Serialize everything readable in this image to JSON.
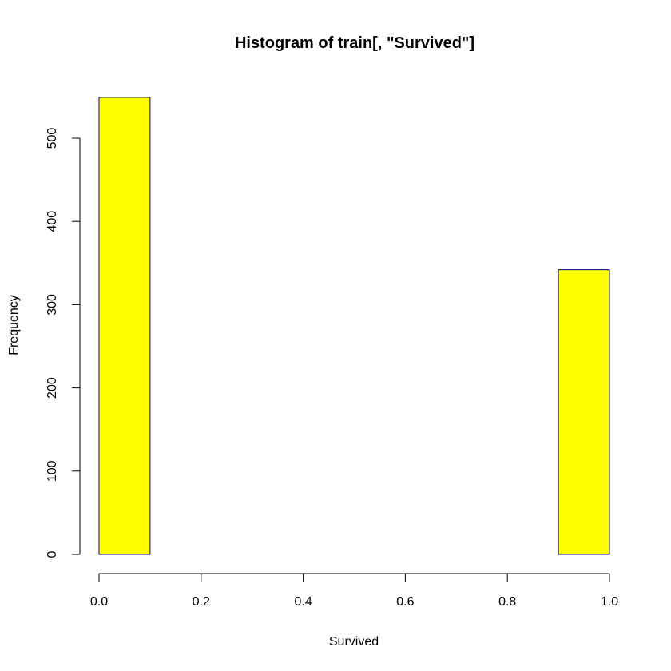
{
  "chart_data": {
    "type": "bar",
    "title": "Histogram of train[, \"Survived\"]",
    "xlabel": "Survived",
    "ylabel": "Frequency",
    "xlim": [
      0,
      1
    ],
    "ylim": [
      0,
      549
    ],
    "x_ticks": [
      "0.0",
      "0.2",
      "0.4",
      "0.6",
      "0.8",
      "1.0"
    ],
    "y_ticks": [
      "0",
      "100",
      "200",
      "300",
      "400",
      "500"
    ],
    "bins": [
      {
        "start": 0.0,
        "end": 0.1,
        "count": 549
      },
      {
        "start": 0.1,
        "end": 0.2,
        "count": 0
      },
      {
        "start": 0.2,
        "end": 0.3,
        "count": 0
      },
      {
        "start": 0.3,
        "end": 0.4,
        "count": 0
      },
      {
        "start": 0.4,
        "end": 0.5,
        "count": 0
      },
      {
        "start": 0.5,
        "end": 0.6,
        "count": 0
      },
      {
        "start": 0.6,
        "end": 0.7,
        "count": 0
      },
      {
        "start": 0.7,
        "end": 0.8,
        "count": 0
      },
      {
        "start": 0.8,
        "end": 0.9,
        "count": 0
      },
      {
        "start": 0.9,
        "end": 1.0,
        "count": 342
      }
    ],
    "bar_fill": "#ffff00",
    "bar_border": "#00008b",
    "grid": false,
    "legend": "none"
  }
}
